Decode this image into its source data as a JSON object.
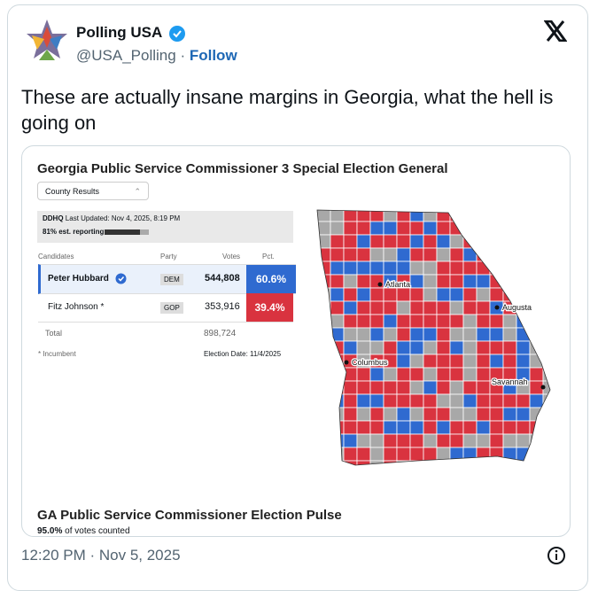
{
  "tweet": {
    "author": "Polling USA",
    "handle": "@USA_Polling",
    "separator": "·",
    "follow": "Follow",
    "text": "These are actually insane margins in Georgia, what the hell is going on",
    "timestamp": "12:20 PM · Nov 5, 2025"
  },
  "embed": {
    "title": "Georgia Public Service Commissioner 3 Special Election General",
    "dropdown": "County Results",
    "source": "DDHQ",
    "updated": "Last Updated: Nov 4, 2025, 8:19 PM",
    "reporting": "81% est. reporting",
    "table": {
      "headers": [
        "Candidates",
        "Party",
        "Votes",
        "Pct."
      ],
      "rows": [
        [
          "Peter Hubbard",
          "DEM",
          "544,808",
          "60.6%"
        ],
        [
          "Fitz Johnson *",
          "GOP",
          "353,916",
          "39.4%"
        ]
      ],
      "total": [
        "Total",
        "898,724"
      ]
    },
    "footnote": "* Incumbent",
    "election_date": "Election Date: 11/4/2025",
    "map_labels": [
      "Atlanta",
      "Augusta",
      "Columbus",
      "Savannah"
    ],
    "pulse_title": "GA Public Service Commissioner Election Pulse",
    "pulse_percent": "95.0%",
    "pulse_text": "of votes counted"
  }
}
